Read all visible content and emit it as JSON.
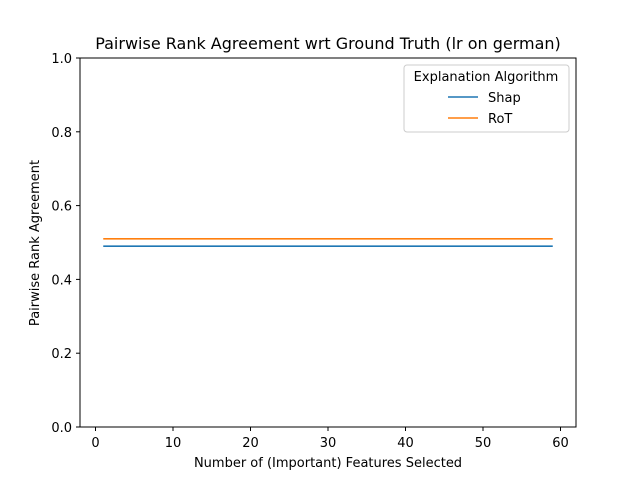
{
  "chart_data": {
    "type": "line",
    "title": "Pairwise Rank Agreement wrt Ground Truth (lr on german)",
    "xlabel": "Number of (Important) Features Selected",
    "ylabel": "Pairwise Rank Agreement",
    "xlim": [
      -2,
      62
    ],
    "ylim": [
      0,
      1
    ],
    "xticks": [
      0,
      10,
      20,
      30,
      40,
      50,
      60
    ],
    "yticks": [
      0.0,
      0.2,
      0.4,
      0.6,
      0.8,
      1.0
    ],
    "xtick_labels": [
      "0",
      "10",
      "20",
      "30",
      "40",
      "50",
      "60"
    ],
    "ytick_labels": [
      "0.0",
      "0.2",
      "0.4",
      "0.6",
      "0.8",
      "1.0"
    ],
    "grid": false,
    "legend": {
      "title": "Explanation Algorithm",
      "placement": "top-right"
    },
    "series": [
      {
        "name": "Shap",
        "color": "#1f77b4",
        "x": [
          1,
          59
        ],
        "y": [
          0.49,
          0.49
        ]
      },
      {
        "name": "RoT",
        "color": "#ff7f0e",
        "x": [
          1,
          59
        ],
        "y": [
          0.51,
          0.51
        ]
      }
    ]
  }
}
